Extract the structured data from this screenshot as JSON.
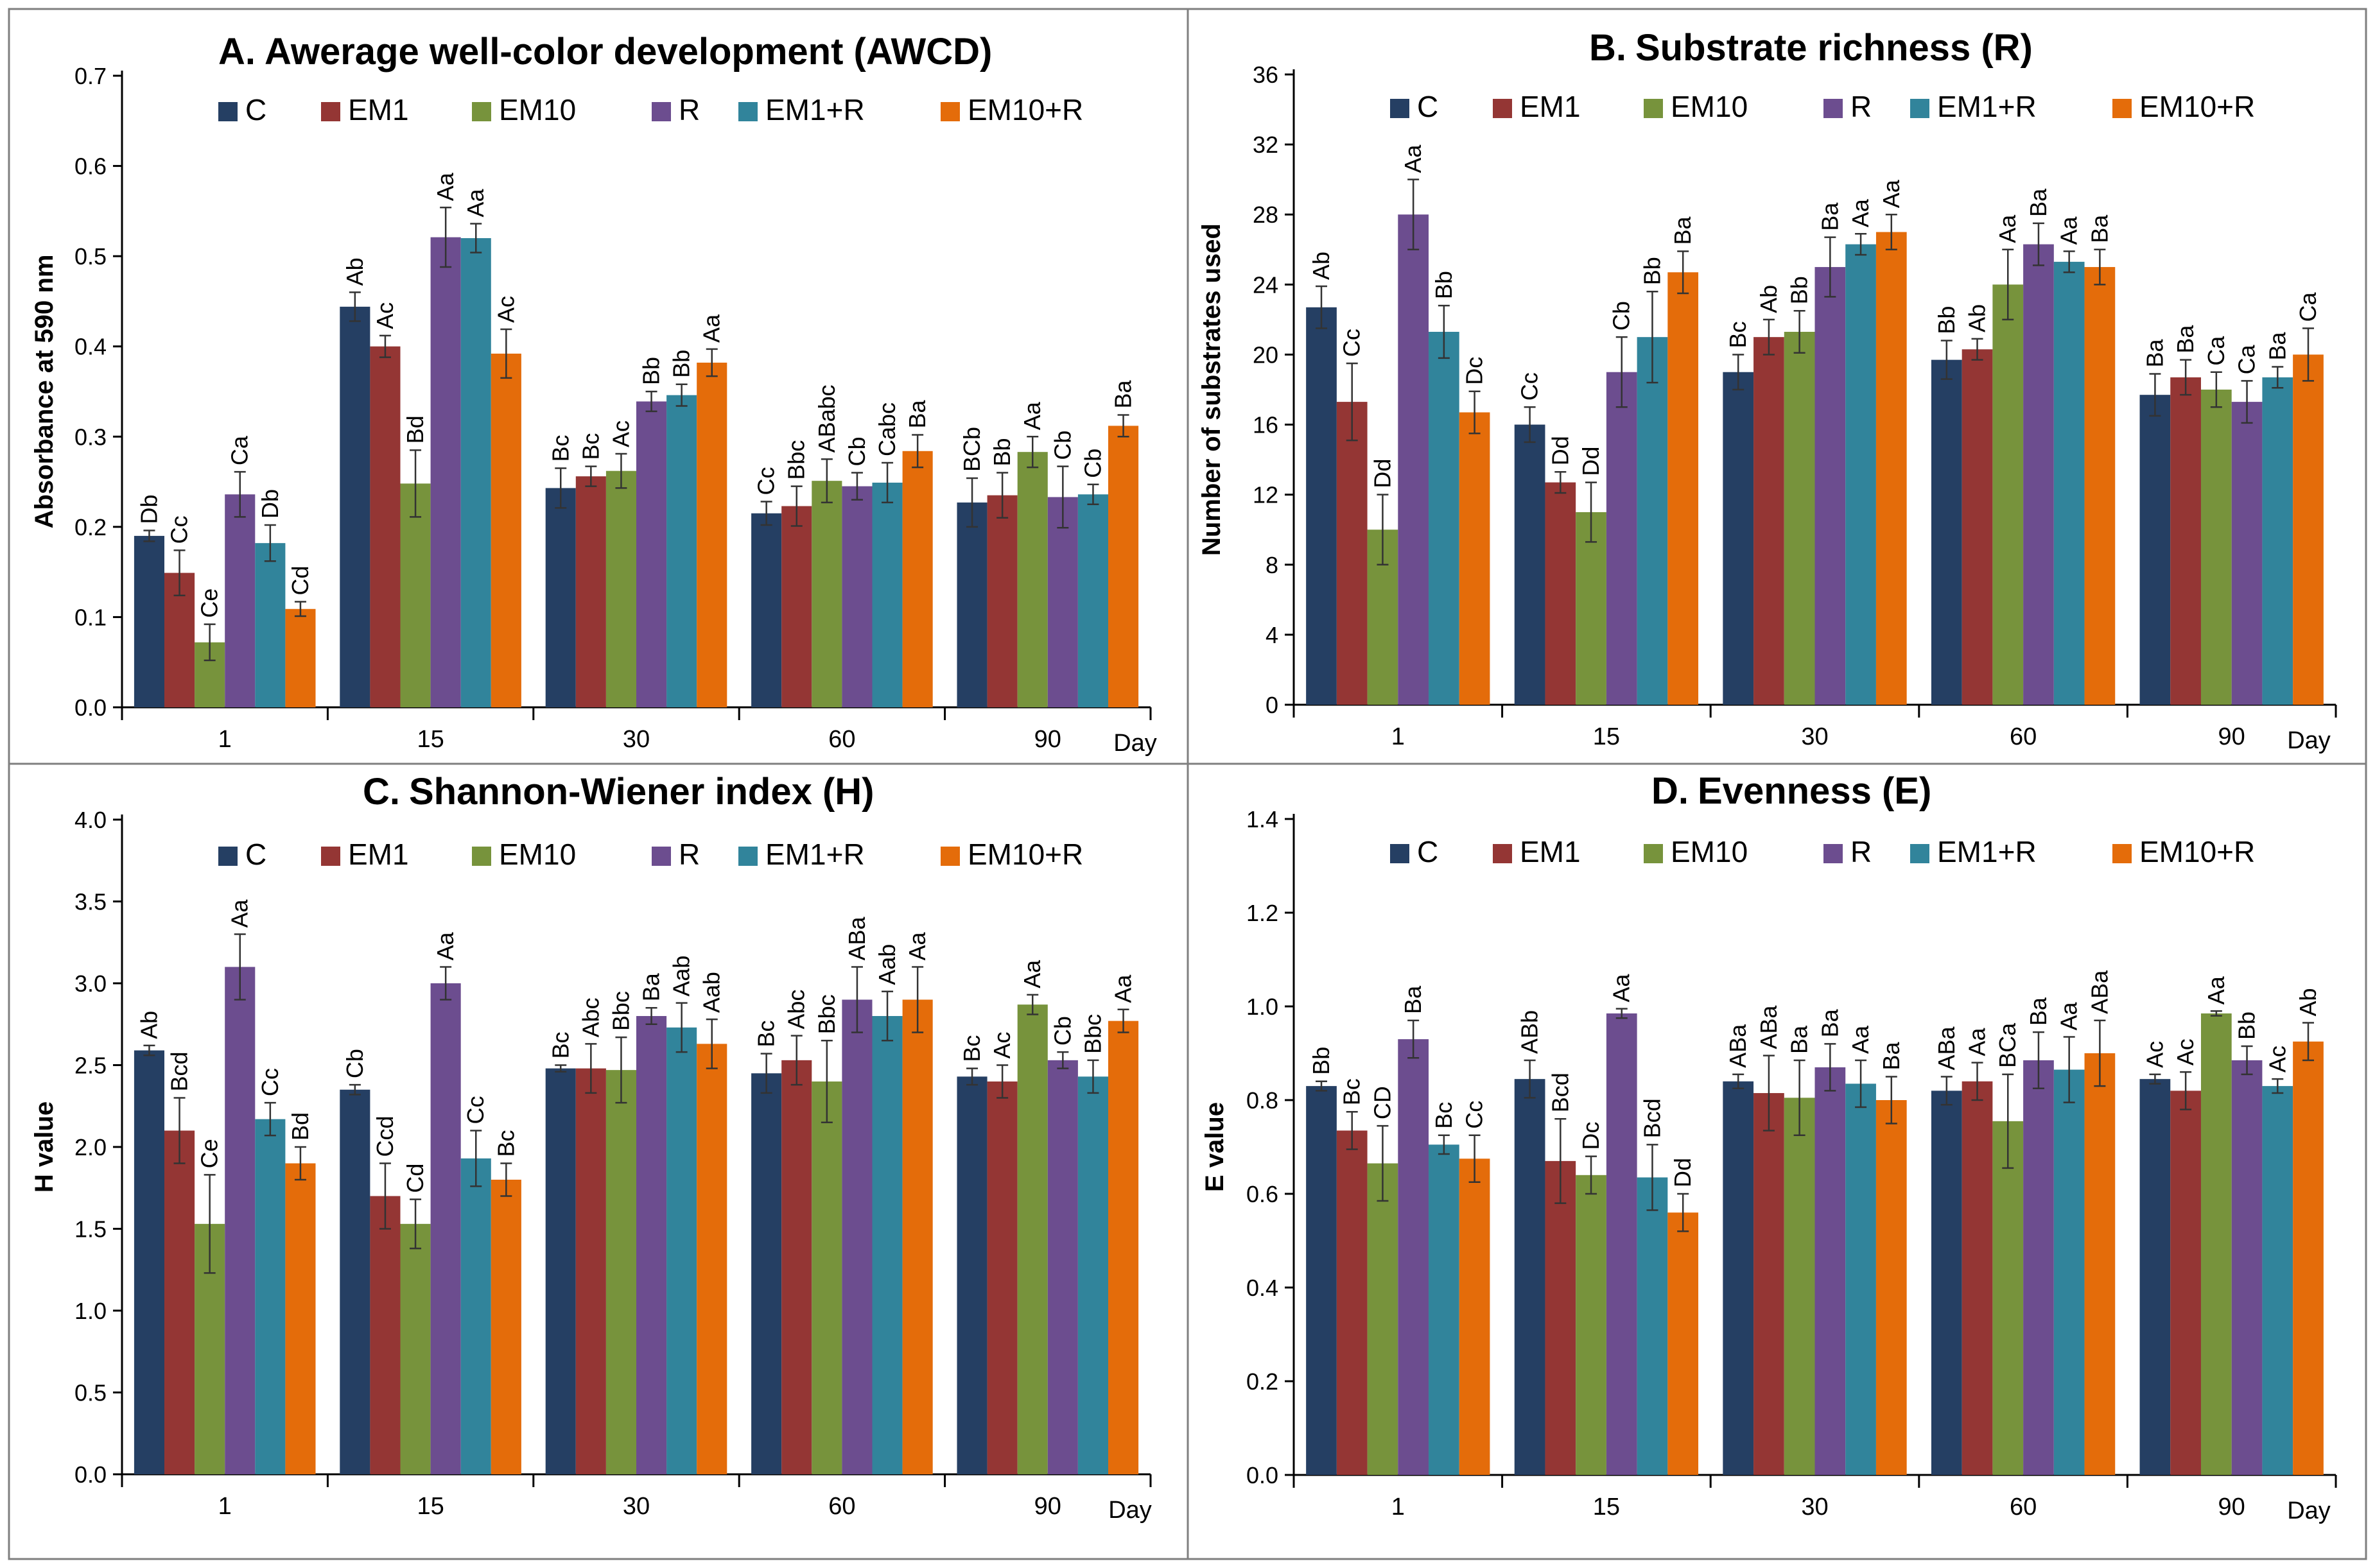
{
  "colors": {
    "C": "#253f63",
    "EM1": "#943634",
    "EM10": "#77933c",
    "R": "#6c4d8f",
    "EM1+R": "#31849b",
    "EM10+R": "#e46c0a",
    "frame": "#7f7f7f",
    "axis": "#000000"
  },
  "chart_data": [
    {
      "type": "bar",
      "panel": "A.",
      "title": "Awerage well-color development (AWCD)",
      "ylabel": "Absorbance at 590 nm",
      "xlabel": "Day",
      "ylim": [
        0,
        0.7
      ],
      "yticks": [
        "0.0",
        "0.1",
        "0.2",
        "0.3",
        "0.4",
        "0.5",
        "0.6",
        "0.7"
      ],
      "categories": [
        "1",
        "15",
        "30",
        "60",
        "90"
      ],
      "legend": "top",
      "series": [
        {
          "name": "C",
          "values": [
            0.19,
            0.444,
            0.243,
            0.215,
            0.227
          ],
          "errors": [
            0.006,
            0.016,
            0.022,
            0.013,
            0.027
          ],
          "labels": [
            "Db",
            "Ab",
            "Bc",
            "Cc",
            "BCb"
          ]
        },
        {
          "name": "EM1",
          "values": [
            0.149,
            0.4,
            0.256,
            0.223,
            0.235
          ],
          "errors": [
            0.025,
            0.012,
            0.011,
            0.022,
            0.025
          ],
          "labels": [
            "Cc",
            "Ac",
            "Bc",
            "Bbc",
            "Bb"
          ]
        },
        {
          "name": "EM10",
          "values": [
            0.072,
            0.248,
            0.262,
            0.251,
            0.283
          ],
          "errors": [
            0.02,
            0.037,
            0.019,
            0.024,
            0.017
          ],
          "labels": [
            "Ce",
            "Bd",
            "Ac",
            "ABabc",
            "Aa"
          ]
        },
        {
          "name": "R",
          "values": [
            0.236,
            0.521,
            0.339,
            0.245,
            0.233
          ],
          "errors": [
            0.025,
            0.033,
            0.011,
            0.015,
            0.034
          ],
          "labels": [
            "Ca",
            "Aa",
            "Bb",
            "Cb",
            "Cb"
          ]
        },
        {
          "name": "EM1+R",
          "values": [
            0.182,
            0.52,
            0.346,
            0.249,
            0.236
          ],
          "errors": [
            0.02,
            0.016,
            0.012,
            0.022,
            0.011
          ],
          "labels": [
            "Db",
            "Aa",
            "Bb",
            "Cabc",
            "Cb"
          ]
        },
        {
          "name": "EM10+R",
          "values": [
            0.109,
            0.392,
            0.382,
            0.284,
            0.312
          ],
          "errors": [
            0.008,
            0.027,
            0.015,
            0.018,
            0.012
          ],
          "labels": [
            "Cd",
            "Ac",
            "Aa",
            "Ba",
            "Ba"
          ]
        }
      ]
    },
    {
      "type": "bar",
      "panel": "B.",
      "title": "Substrate richness (R)",
      "ylabel": "Number of substrates used",
      "xlabel": "Day",
      "ylim": [
        0,
        36
      ],
      "yticks": [
        "0",
        "4",
        "8",
        "12",
        "16",
        "20",
        "24",
        "28",
        "32",
        "36"
      ],
      "categories": [
        "1",
        "15",
        "30",
        "60",
        "90"
      ],
      "legend": "top",
      "series": [
        {
          "name": "C",
          "values": [
            22.7,
            16.0,
            19.0,
            19.7,
            17.7
          ],
          "errors": [
            1.2,
            1.0,
            1.0,
            1.1,
            1.2
          ],
          "labels": [
            "Ab",
            "Cc",
            "Bc",
            "Bb",
            "Ba"
          ]
        },
        {
          "name": "EM1",
          "values": [
            17.3,
            12.7,
            21.0,
            20.3,
            18.7
          ],
          "errors": [
            2.2,
            0.6,
            1.0,
            0.6,
            1.0
          ],
          "labels": [
            "Cc",
            "Dd",
            "Ab",
            "Ab",
            "Ba"
          ]
        },
        {
          "name": "EM10",
          "values": [
            10.0,
            11.0,
            21.3,
            24.0,
            18.0
          ],
          "errors": [
            2.0,
            1.7,
            1.2,
            2.0,
            1.0
          ],
          "labels": [
            "Dd",
            "Dd",
            "Bb",
            "Aa",
            "Ca"
          ]
        },
        {
          "name": "R",
          "values": [
            28.0,
            19.0,
            25.0,
            26.3,
            17.3
          ],
          "errors": [
            2.0,
            2.0,
            1.7,
            1.2,
            1.2
          ],
          "labels": [
            "Aa",
            "Cb",
            "Ba",
            "Ba",
            "Ca"
          ]
        },
        {
          "name": "EM1+R",
          "values": [
            21.3,
            21.0,
            26.3,
            25.3,
            18.7
          ],
          "errors": [
            1.5,
            2.6,
            0.6,
            0.6,
            0.6
          ],
          "labels": [
            "Bb",
            "Bb",
            "Aa",
            "Aa",
            "Ba"
          ]
        },
        {
          "name": "EM10+R",
          "values": [
            16.7,
            24.7,
            27.0,
            25.0,
            20.0
          ],
          "errors": [
            1.2,
            1.2,
            1.0,
            1.0,
            1.5
          ],
          "labels": [
            "Dc",
            "Ba",
            "Aa",
            "Ba",
            "Ca"
          ]
        }
      ]
    },
    {
      "type": "bar",
      "panel": "C.",
      "title": "Shannon-Wiener index (H)",
      "ylabel": "H value",
      "xlabel": "Day",
      "ylim": [
        0,
        4.0
      ],
      "yticks": [
        "0.0",
        "0.5",
        "1.0",
        "1.5",
        "2.0",
        "2.5",
        "3.0",
        "3.5",
        "4.0"
      ],
      "categories": [
        "1",
        "15",
        "30",
        "60",
        "90"
      ],
      "legend": "top",
      "series": [
        {
          "name": "C",
          "values": [
            2.59,
            2.35,
            2.48,
            2.45,
            2.43
          ],
          "errors": [
            0.03,
            0.03,
            0.02,
            0.12,
            0.05
          ],
          "labels": [
            "Ab",
            "Cb",
            "Bc",
            "Bc",
            "Bc"
          ]
        },
        {
          "name": "EM1",
          "values": [
            2.1,
            1.7,
            2.48,
            2.53,
            2.4
          ],
          "errors": [
            0.2,
            0.2,
            0.15,
            0.15,
            0.1
          ],
          "labels": [
            "Bcd",
            "Ccd",
            "Abc",
            "Abc",
            "Ac"
          ]
        },
        {
          "name": "EM10",
          "values": [
            1.53,
            1.53,
            2.47,
            2.4,
            2.87
          ],
          "errors": [
            0.3,
            0.15,
            0.2,
            0.25,
            0.06
          ],
          "labels": [
            "Ce",
            "Cd",
            "Bbc",
            "Bbc",
            "Aa"
          ]
        },
        {
          "name": "R",
          "values": [
            3.1,
            3.0,
            2.8,
            2.9,
            2.53
          ],
          "errors": [
            0.2,
            0.1,
            0.05,
            0.2,
            0.05
          ],
          "labels": [
            "Aa",
            "Aa",
            "Ba",
            "ABa",
            "Cb"
          ]
        },
        {
          "name": "EM1+R",
          "values": [
            2.17,
            1.93,
            2.73,
            2.8,
            2.43
          ],
          "errors": [
            0.1,
            0.17,
            0.15,
            0.15,
            0.1
          ],
          "labels": [
            "Cc",
            "Cc",
            "Aab",
            "Aab",
            "Bbc"
          ]
        },
        {
          "name": "EM10+R",
          "values": [
            1.9,
            1.8,
            2.63,
            2.9,
            2.77
          ],
          "errors": [
            0.1,
            0.1,
            0.15,
            0.2,
            0.07
          ],
          "labels": [
            "Bd",
            "Bc",
            "Aab",
            "Aa",
            "Aa"
          ]
        }
      ]
    },
    {
      "type": "bar",
      "panel": "D.",
      "title": "Evenness (E)",
      "ylabel": "E value",
      "xlabel": "Day",
      "ylim": [
        0,
        1.4
      ],
      "yticks": [
        "0.0",
        "0.2",
        "0.4",
        "0.6",
        "0.8",
        "1.0",
        "1.2",
        "1.4"
      ],
      "categories": [
        "1",
        "15",
        "30",
        "60",
        "90"
      ],
      "legend": "top",
      "series": [
        {
          "name": "C",
          "values": [
            0.83,
            0.845,
            0.84,
            0.82,
            0.845
          ],
          "errors": [
            0.01,
            0.04,
            0.015,
            0.03,
            0.01
          ],
          "labels": [
            "Bb",
            "ABb",
            "ABa",
            "ABa",
            "Ac"
          ]
        },
        {
          "name": "EM1",
          "values": [
            0.735,
            0.67,
            0.815,
            0.84,
            0.82
          ],
          "errors": [
            0.04,
            0.09,
            0.08,
            0.04,
            0.04
          ],
          "labels": [
            "Bc",
            "Bcd",
            "ABa",
            "Aa",
            "Ac"
          ]
        },
        {
          "name": "EM10",
          "values": [
            0.665,
            0.64,
            0.805,
            0.755,
            0.985
          ],
          "errors": [
            0.08,
            0.04,
            0.08,
            0.1,
            0.005
          ],
          "labels": [
            "CD",
            "Dc",
            "Ba",
            "BCa",
            "Aa"
          ]
        },
        {
          "name": "R",
          "values": [
            0.93,
            0.985,
            0.87,
            0.885,
            0.885
          ],
          "errors": [
            0.04,
            0.01,
            0.05,
            0.06,
            0.03
          ],
          "labels": [
            "Ba",
            "Aa",
            "Ba",
            "Ba",
            "Bb"
          ]
        },
        {
          "name": "EM1+R",
          "values": [
            0.705,
            0.635,
            0.835,
            0.865,
            0.83
          ],
          "errors": [
            0.02,
            0.07,
            0.05,
            0.07,
            0.015
          ],
          "labels": [
            "Bc",
            "Bcd",
            "Aa",
            "Aa",
            "Ac"
          ]
        },
        {
          "name": "EM10+R",
          "values": [
            0.675,
            0.56,
            0.8,
            0.9,
            0.925
          ],
          "errors": [
            0.05,
            0.04,
            0.05,
            0.07,
            0.04
          ],
          "labels": [
            "Cc",
            "Dd",
            "Ba",
            "ABa",
            "Ab"
          ]
        }
      ]
    }
  ]
}
